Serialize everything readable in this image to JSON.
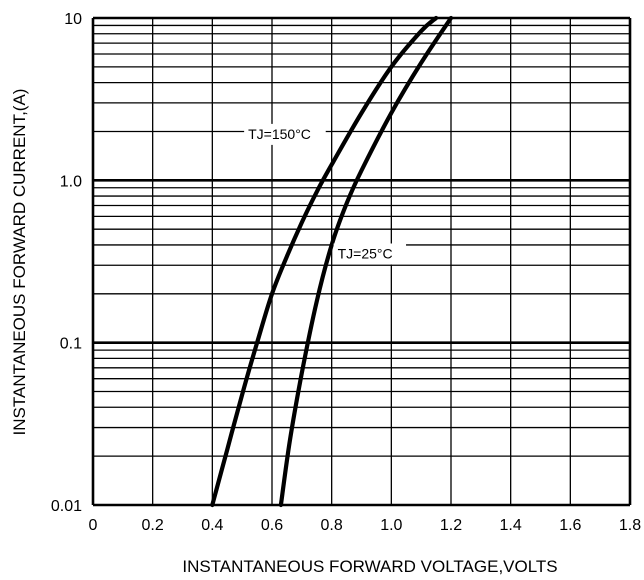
{
  "chart_data": {
    "type": "line",
    "title": "",
    "xlabel": "INSTANTANEOUS FORWARD VOLTAGE,VOLTS",
    "ylabel": "INSTANTANEOUS FORWARD CURRENT,(A)",
    "xlim": [
      0,
      1.8
    ],
    "ylim": [
      0.01,
      10
    ],
    "yscale": "log",
    "grid": true,
    "x_tick_labels": [
      "0",
      "0.2",
      "0.4",
      "0.6",
      "0.8",
      "1.0",
      "1.2",
      "1.4",
      "1.6",
      "1.8"
    ],
    "x_tick_values": [
      0,
      0.2,
      0.4,
      0.6,
      0.8,
      1.0,
      1.2,
      1.4,
      1.6,
      1.8
    ],
    "y_tick_labels": [
      "10",
      "1.0",
      "0.1",
      "0.01"
    ],
    "y_tick_values": [
      10,
      1,
      0.1,
      0.01
    ],
    "series": [
      {
        "name": "TJ=150°C",
        "x": [
          0.4,
          0.45,
          0.5,
          0.55,
          0.6,
          0.65,
          0.7,
          0.75,
          0.8,
          0.9,
          1.0,
          1.1,
          1.15
        ],
        "y": [
          0.01,
          0.022,
          0.048,
          0.1,
          0.2,
          0.34,
          0.55,
          0.85,
          1.25,
          2.6,
          5.0,
          8.3,
          10
        ]
      },
      {
        "name": "TJ=25°C",
        "x": [
          0.63,
          0.66,
          0.7,
          0.75,
          0.8,
          0.85,
          0.9,
          1.0,
          1.1,
          1.2
        ],
        "y": [
          0.01,
          0.025,
          0.065,
          0.18,
          0.4,
          0.72,
          1.15,
          2.6,
          5.3,
          10
        ]
      }
    ],
    "annotations": [
      {
        "text": "TJ=150°C",
        "x": 0.52,
        "y": 1.8
      },
      {
        "text": "TJ=25°C",
        "x": 0.82,
        "y": 0.33
      }
    ]
  }
}
